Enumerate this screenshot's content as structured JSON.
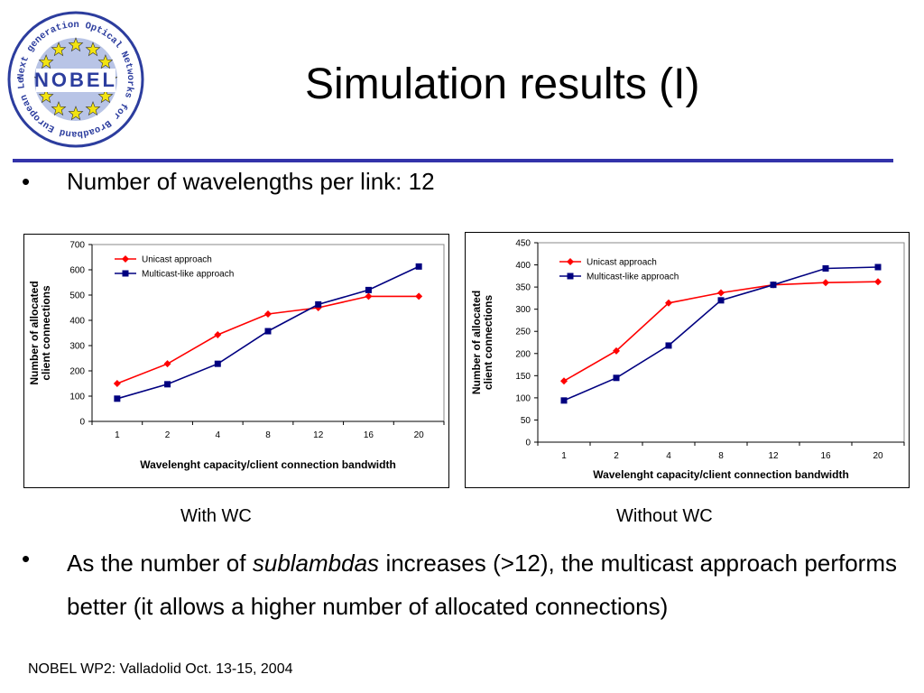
{
  "slide": {
    "title": "Simulation results (I)",
    "bullet1": "Number of wavelengths per link: 12",
    "bullet2": {
      "part1": "As the number of ",
      "emph": "sublambdas",
      "part2": " increases (>12), the multicast approach performs better (it allows a higher number of allocated connections)"
    },
    "bullet_char": "•",
    "footer": "NOBEL WP2: Valladolid Oct. 13-15, 2004",
    "caption_left": "With WC",
    "caption_right": "Without WC"
  },
  "logo": {
    "center_text": "NOBEL",
    "ring_text": "Next generation Optical Networks for Broadband European Leadership",
    "ring_color": "#2c3d9e",
    "star_color": "#f2e311"
  },
  "colors": {
    "rule": "#3333aa",
    "unicast": "#ff0000",
    "multicast": "#000080"
  },
  "chart_data": [
    {
      "type": "line",
      "categories": [
        "1",
        "2",
        "4",
        "8",
        "12",
        "16",
        "20"
      ],
      "series": [
        {
          "name": "Unicast approach",
          "marker": "diamond",
          "values": [
            150,
            228,
            343,
            425,
            450,
            495,
            495
          ]
        },
        {
          "name": "Multicast-like approach",
          "marker": "square",
          "values": [
            90,
            147,
            228,
            357,
            463,
            520,
            613
          ]
        }
      ],
      "xlabel": "Wavelenght capacity/client connection bandwidth",
      "ylabel_lines": [
        "Number of allocated",
        "client connections"
      ],
      "ylim": [
        0,
        700
      ],
      "yticks": [
        0,
        100,
        200,
        300,
        400,
        500,
        600,
        700
      ],
      "legend": "top-left",
      "grid": false
    },
    {
      "type": "line",
      "categories": [
        "1",
        "2",
        "4",
        "8",
        "12",
        "16",
        "20"
      ],
      "series": [
        {
          "name": "Unicast approach",
          "marker": "diamond",
          "values": [
            138,
            206,
            314,
            337,
            355,
            360,
            362
          ]
        },
        {
          "name": "Multicast-like approach",
          "marker": "square",
          "values": [
            94,
            145,
            218,
            320,
            355,
            392,
            395
          ]
        }
      ],
      "xlabel": "Wavelenght capacity/client connection bandwidth",
      "ylabel_lines": [
        "Number of allocated",
        "client connections"
      ],
      "ylim": [
        0,
        450
      ],
      "yticks": [
        0,
        50,
        100,
        150,
        200,
        250,
        300,
        350,
        400,
        450
      ],
      "legend": "top-left",
      "grid": false
    }
  ]
}
